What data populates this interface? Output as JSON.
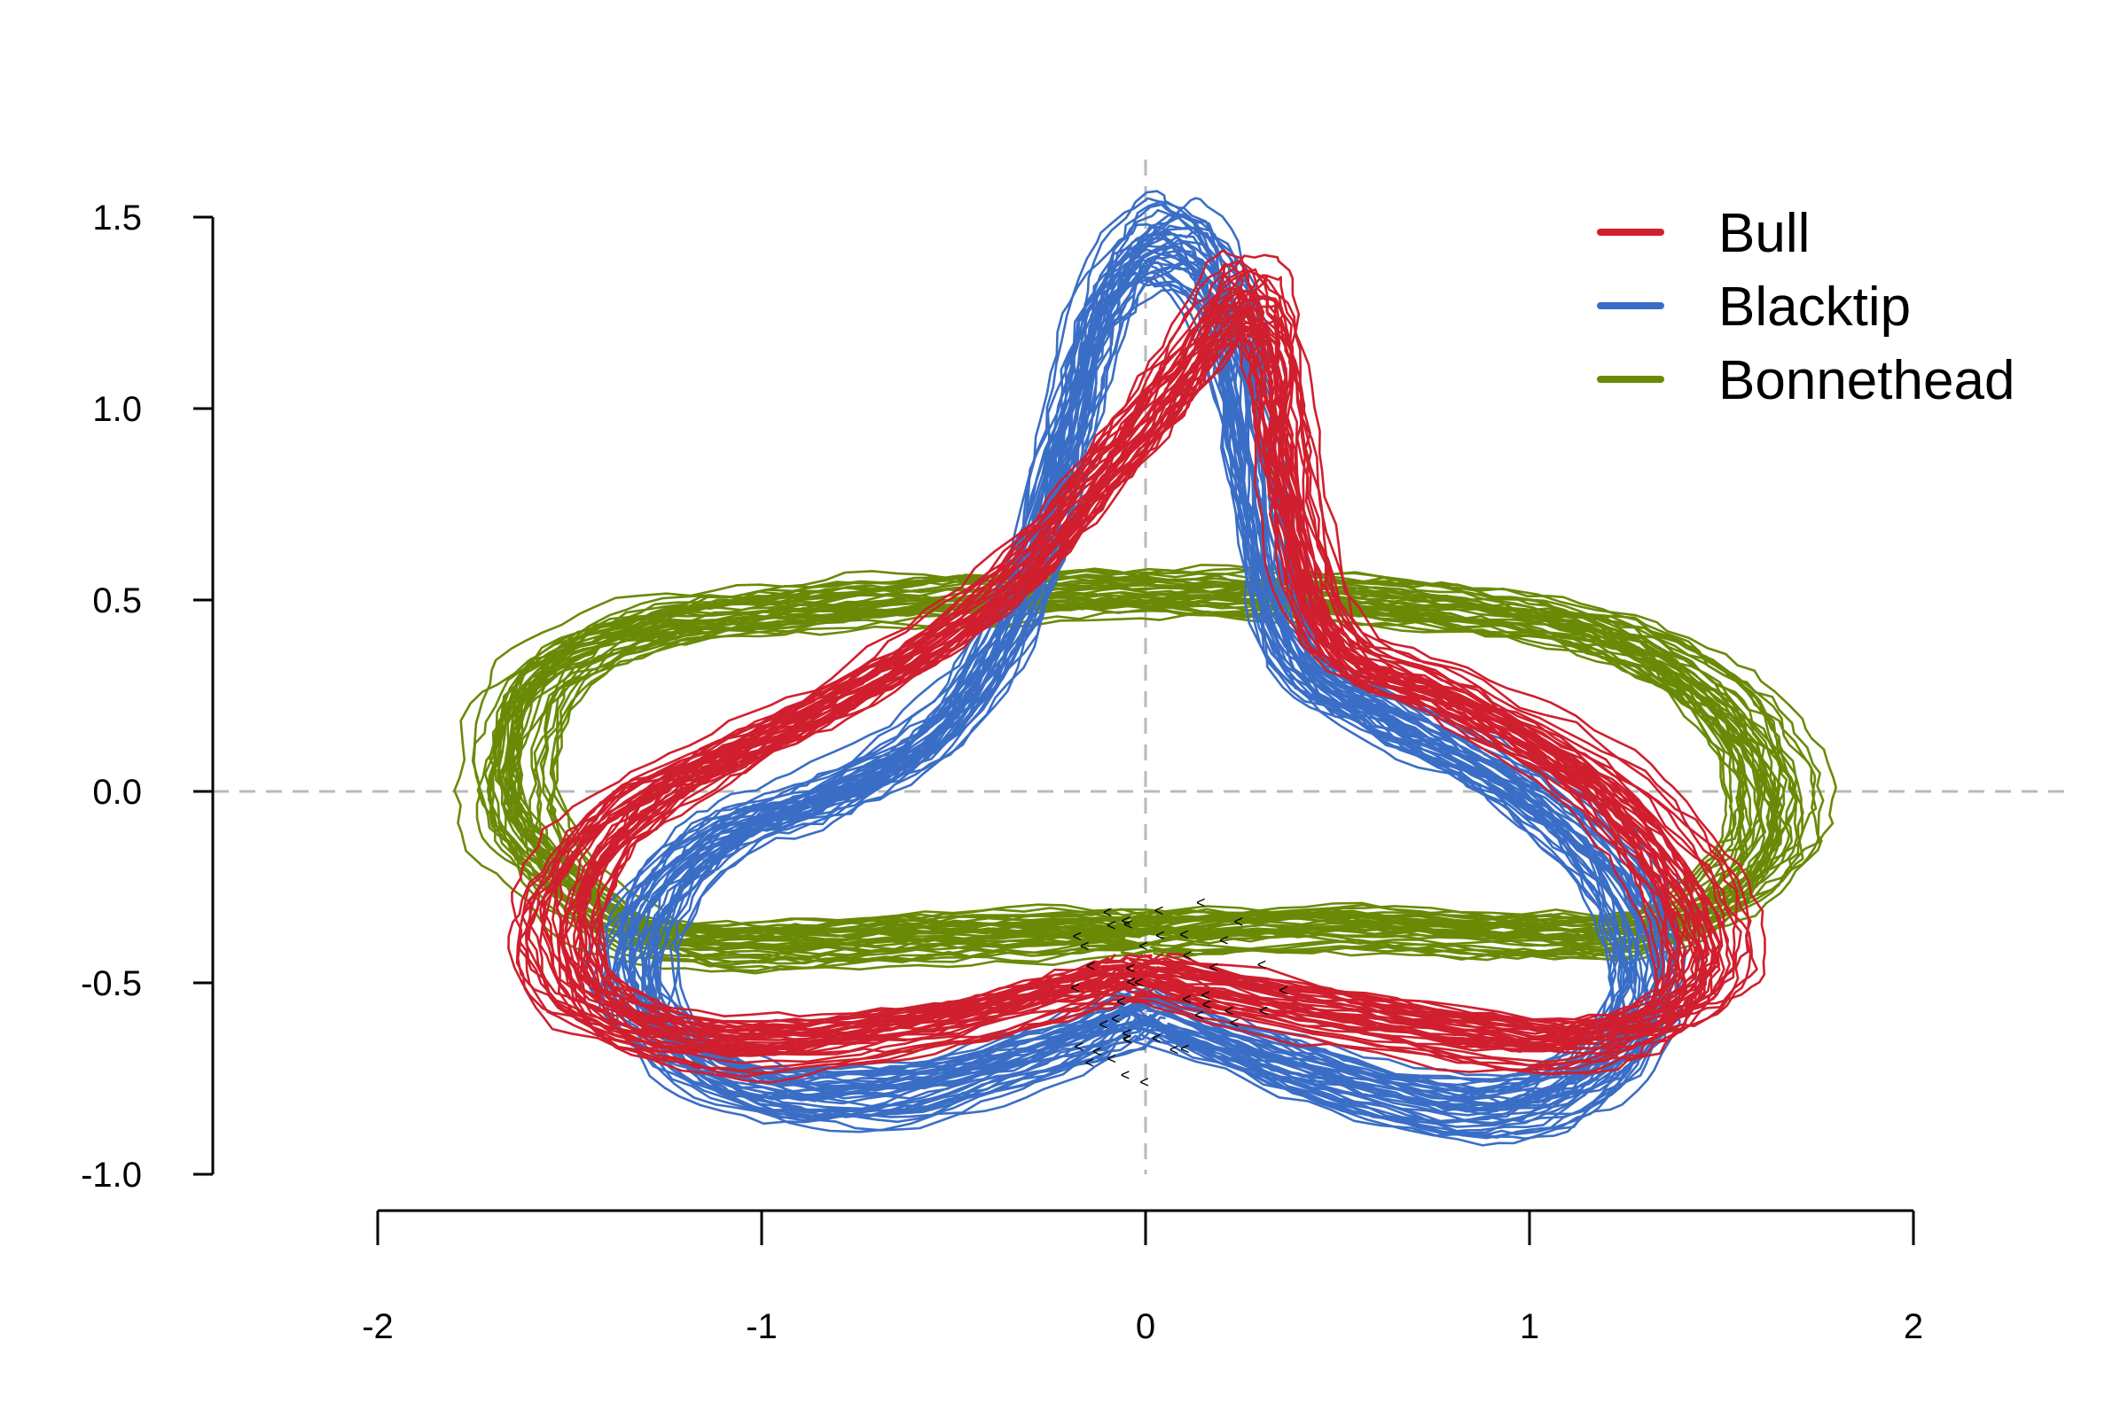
{
  "colors": {
    "bull": "#d01f2e",
    "blacktip": "#3a6ec6",
    "bonnethead": "#6a8a07",
    "guide": "#b9b9b9",
    "marker": "#000000"
  },
  "chart_data": {
    "type": "line",
    "title": "",
    "xlabel": "",
    "ylabel": "",
    "xlim": [
      -2,
      2
    ],
    "ylim": [
      -1.0,
      1.5
    ],
    "x_ticks": [
      "-2",
      "-1",
      "0",
      "1",
      "2"
    ],
    "y_ticks": [
      "1.5",
      "1.0",
      "0.5",
      "0.0",
      "-0.5",
      "-1.0"
    ],
    "reference_lines": {
      "x": 0,
      "y": 0,
      "style": "dashed"
    },
    "legend_position": "top-right",
    "legend": [
      "Bull",
      "Blacktip",
      "Bonnethead"
    ],
    "series": [
      {
        "name": "Bull",
        "color": "#d01f2e",
        "traces": 40,
        "mean_path": [
          [
            0.0,
            -0.48
          ],
          [
            0.5,
            -0.58
          ],
          [
            1.05,
            -0.66
          ],
          [
            1.35,
            -0.6
          ],
          [
            1.47,
            -0.45
          ],
          [
            1.38,
            -0.2
          ],
          [
            1.15,
            0.05
          ],
          [
            0.8,
            0.25
          ],
          [
            0.5,
            0.4
          ],
          [
            0.38,
            0.8
          ],
          [
            0.34,
            1.15
          ],
          [
            0.25,
            1.3
          ],
          [
            0.1,
            1.1
          ],
          [
            -0.1,
            0.85
          ],
          [
            -0.35,
            0.55
          ],
          [
            -0.7,
            0.3
          ],
          [
            -1.05,
            0.12
          ],
          [
            -1.35,
            -0.05
          ],
          [
            -1.52,
            -0.3
          ],
          [
            -1.45,
            -0.55
          ],
          [
            -1.1,
            -0.66
          ],
          [
            -0.6,
            -0.62
          ],
          [
            -0.2,
            -0.52
          ],
          [
            0.0,
            -0.48
          ]
        ]
      },
      {
        "name": "Blacktip",
        "color": "#3a6ec6",
        "traces": 40,
        "mean_path": [
          [
            0.0,
            -0.58
          ],
          [
            0.4,
            -0.73
          ],
          [
            0.85,
            -0.83
          ],
          [
            1.15,
            -0.75
          ],
          [
            1.3,
            -0.52
          ],
          [
            1.22,
            -0.22
          ],
          [
            0.95,
            0.02
          ],
          [
            0.65,
            0.18
          ],
          [
            0.38,
            0.38
          ],
          [
            0.28,
            0.85
          ],
          [
            0.2,
            1.3
          ],
          [
            0.05,
            1.45
          ],
          [
            -0.1,
            1.3
          ],
          [
            -0.2,
            0.95
          ],
          [
            -0.32,
            0.5
          ],
          [
            -0.55,
            0.15
          ],
          [
            -0.85,
            -0.02
          ],
          [
            -1.1,
            -0.12
          ],
          [
            -1.3,
            -0.35
          ],
          [
            -1.28,
            -0.6
          ],
          [
            -1.0,
            -0.78
          ],
          [
            -0.6,
            -0.78
          ],
          [
            -0.2,
            -0.66
          ],
          [
            0.0,
            -0.58
          ]
        ]
      },
      {
        "name": "Bonnethead",
        "color": "#6a8a07",
        "traces": 40,
        "mean_path": [
          [
            0.0,
            -0.37
          ],
          [
            0.5,
            -0.36
          ],
          [
            1.0,
            -0.38
          ],
          [
            1.35,
            -0.36
          ],
          [
            1.58,
            -0.2
          ],
          [
            1.62,
            0.0
          ],
          [
            1.5,
            0.22
          ],
          [
            1.25,
            0.38
          ],
          [
            0.9,
            0.46
          ],
          [
            0.45,
            0.5
          ],
          [
            0.0,
            0.51
          ],
          [
            -0.45,
            0.5
          ],
          [
            -0.9,
            0.47
          ],
          [
            -1.3,
            0.42
          ],
          [
            -1.58,
            0.28
          ],
          [
            -1.65,
            0.0
          ],
          [
            -1.55,
            -0.2
          ],
          [
            -1.3,
            -0.38
          ],
          [
            -0.9,
            -0.4
          ],
          [
            -0.45,
            -0.38
          ],
          [
            0.0,
            -0.37
          ]
        ]
      }
    ],
    "start_markers": {
      "count": 44,
      "x_range": [
        -0.2,
        0.42
      ],
      "y_range": [
        -0.78,
        -0.3
      ],
      "symbol": "<"
    }
  }
}
